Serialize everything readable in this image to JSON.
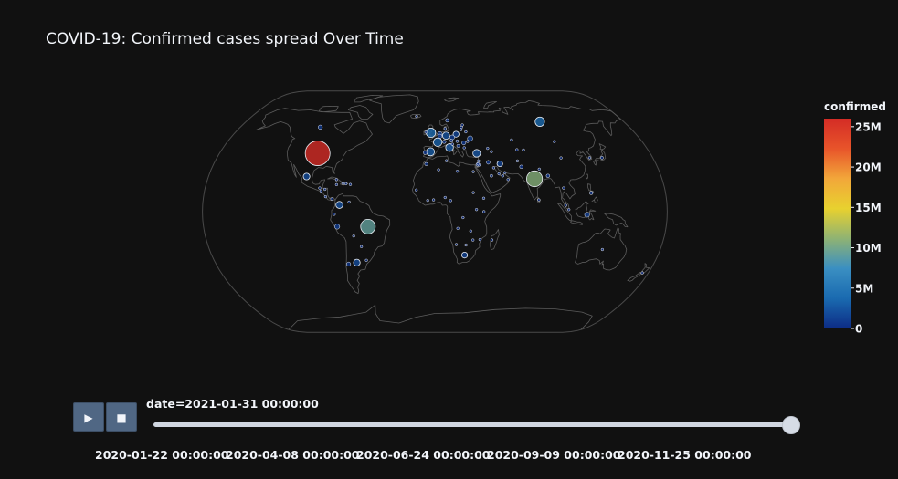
{
  "chart_data": {
    "type": "scatter",
    "subtype": "scatter-geo bubble map, natural earth projection",
    "title": "COVID-19: Confirmed cases spread Over Time",
    "color_variable": "confirmed",
    "colorbar": {
      "title": "confirmed",
      "range": [
        0,
        26000000
      ],
      "ticks": [
        "0",
        "5M",
        "10M",
        "15M",
        "20M",
        "25M"
      ],
      "tick_values": [
        0,
        5000000,
        10000000,
        15000000,
        20000000,
        25000000
      ],
      "colorscale": [
        "#0d2c85",
        "#1a6ab0",
        "#3a8fc2",
        "#8fb373",
        "#e8d12f",
        "#f2a73a",
        "#e8542a",
        "#d42c26"
      ]
    },
    "animation_frame": "date",
    "current_frame_label": "date=2021-01-31 00:00:00",
    "slider_ticks": [
      "2020-01-22 00:00:00",
      "2020-04-08 00:00:00",
      "2020-06-24 00:00:00",
      "2020-09-09 00:00:00",
      "2020-11-25 00:00:00"
    ],
    "points": [
      {
        "lon": -98,
        "lat": 39,
        "confirmed": 26200000
      },
      {
        "lon": 79,
        "lat": 22,
        "confirmed": 10750000
      },
      {
        "lon": -52,
        "lat": -10,
        "confirmed": 9200000
      },
      {
        "lon": 100,
        "lat": 61,
        "confirmed": 3800000
      },
      {
        "lon": -3.5,
        "lat": 53,
        "confirmed": 3800000
      },
      {
        "lon": 2.5,
        "lat": 46.5,
        "confirmed": 3200000
      },
      {
        "lon": -3.7,
        "lat": 40,
        "confirmed": 2800000
      },
      {
        "lon": 12.5,
        "lat": 42.8,
        "confirmed": 2550000
      },
      {
        "lon": 35,
        "lat": 39,
        "confirmed": 2480000
      },
      {
        "lon": 10,
        "lat": 51,
        "confirmed": 2200000
      },
      {
        "lon": -74,
        "lat": 4.5,
        "confirmed": 2100000
      },
      {
        "lon": -64,
        "lat": -34,
        "confirmed": 1900000
      },
      {
        "lon": -102,
        "lat": 23.5,
        "confirmed": 1850000
      },
      {
        "lon": 19,
        "lat": 52,
        "confirmed": 1500000
      },
      {
        "lon": 24,
        "lat": -29,
        "confirmed": 1450000
      },
      {
        "lon": 53,
        "lat": 32,
        "confirmed": 1400000
      },
      {
        "lon": 31,
        "lat": 49,
        "confirmed": 1200000
      },
      {
        "lon": -76,
        "lat": -10,
        "confirmed": 1100000
      },
      {
        "lon": 118,
        "lat": -2,
        "confirmed": 1080000
      },
      {
        "lon": 15.3,
        "lat": 49.8,
        "confirmed": 980000
      },
      {
        "lon": 4.5,
        "lat": 52.2,
        "confirmed": 960000
      },
      {
        "lon": -71,
        "lat": -35,
        "confirmed": 730000
      },
      {
        "lon": -106,
        "lat": 57,
        "confirmed": 780000
      },
      {
        "lon": 4.6,
        "lat": 50.6,
        "confirmed": 700000
      },
      {
        "lon": 25,
        "lat": 46,
        "confirmed": 720000
      },
      {
        "lon": 43.7,
        "lat": 33,
        "confirmed": 610000
      },
      {
        "lon": 122,
        "lat": 12.5,
        "confirmed": 530000
      },
      {
        "lon": 35,
        "lat": 31.5,
        "confirmed": 640000
      },
      {
        "lon": 45,
        "lat": 24,
        "confirmed": 370000
      },
      {
        "lon": 8.2,
        "lat": 46.8,
        "confirmed": 520000
      },
      {
        "lon": 70,
        "lat": 30,
        "confirmed": 545000
      },
      {
        "lon": 90,
        "lat": 24,
        "confirmed": 535000
      },
      {
        "lon": 14.5,
        "lat": 47.5,
        "confirmed": 410000
      },
      {
        "lon": -7,
        "lat": 31.8,
        "confirmed": 470000
      },
      {
        "lon": 19.5,
        "lat": 47.2,
        "confirmed": 370000
      },
      {
        "lon": 12,
        "lat": 62,
        "confirmed": 570000
      },
      {
        "lon": 20,
        "lat": 44,
        "confirmed": 400000
      },
      {
        "lon": -8,
        "lat": 39.5,
        "confirmed": 720000
      },
      {
        "lon": 67,
        "lat": 48,
        "confirmed": 240000
      },
      {
        "lon": -78,
        "lat": -1.8,
        "confirmed": 250000
      },
      {
        "lon": 101.5,
        "lat": 4.2,
        "confirmed": 210000
      },
      {
        "lon": 28,
        "lat": 53.7,
        "confirmed": 240000
      },
      {
        "lon": -80,
        "lat": 8.5,
        "confirmed": 320000
      },
      {
        "lon": 30.8,
        "lat": 26.8,
        "confirmed": 170000
      },
      {
        "lon": 9.5,
        "lat": 56,
        "confirmed": 200000
      },
      {
        "lon": 28.4,
        "lat": 47,
        "confirmed": 170000
      },
      {
        "lon": 25,
        "lat": 42.7,
        "confirmed": 215000
      },
      {
        "lon": -70,
        "lat": 18.7,
        "confirmed": 200000
      },
      {
        "lon": -90.2,
        "lat": 15.8,
        "confirmed": 155000
      },
      {
        "lon": 15.2,
        "lat": 45.1,
        "confirmed": 230000
      },
      {
        "lon": 47.5,
        "lat": 40.1,
        "confirmed": 230000
      },
      {
        "lon": 44.8,
        "lat": 42.3,
        "confirmed": 255000
      },
      {
        "lon": 35.9,
        "lat": 31.2,
        "confirmed": 320000
      },
      {
        "lon": 58,
        "lat": 21.5,
        "confirmed": 135000
      },
      {
        "lon": 35.9,
        "lat": 33.9,
        "confirmed": 290000
      },
      {
        "lon": 47.5,
        "lat": 29.3,
        "confirmed": 165000
      },
      {
        "lon": 54,
        "lat": 24,
        "confirmed": 310000
      },
      {
        "lon": 51.2,
        "lat": 25.3,
        "confirmed": 150000
      },
      {
        "lon": -8,
        "lat": 53.4,
        "confirmed": 195000
      },
      {
        "lon": 8,
        "lat": 9.5,
        "confirmed": 130000
      },
      {
        "lon": 38,
        "lat": 9,
        "confirmed": 135000
      },
      {
        "lon": 38,
        "lat": 0,
        "confirmed": 100000
      },
      {
        "lon": 3,
        "lat": 28,
        "confirmed": 107000
      },
      {
        "lon": 9.5,
        "lat": 34,
        "confirmed": 200000
      },
      {
        "lon": -85,
        "lat": 10,
        "confirmed": 190000
      },
      {
        "lon": -63.6,
        "lat": -16.3,
        "confirmed": 230000
      },
      {
        "lon": -58.4,
        "lat": -23.4,
        "confirmed": 130000
      },
      {
        "lon": -66.5,
        "lat": 18.2,
        "confirmed": 110000
      },
      {
        "lon": -86,
        "lat": 15,
        "confirmed": 140000
      },
      {
        "lon": -1,
        "lat": 7.9,
        "confirmed": 70000
      },
      {
        "lon": 12.3,
        "lat": 7.4,
        "confirmed": 30000
      },
      {
        "lon": 30,
        "lat": -19,
        "confirmed": 33000
      },
      {
        "lon": 28,
        "lat": -13,
        "confirmed": 60000
      },
      {
        "lon": 35.5,
        "lat": -18.7,
        "confirmed": 38000
      },
      {
        "lon": 45,
        "lat": -19,
        "confirmed": 19000
      },
      {
        "lon": 17,
        "lat": -22,
        "confirmed": 37000
      },
      {
        "lon": 24.7,
        "lat": -22.3,
        "confirmed": 23000
      },
      {
        "lon": 17.9,
        "lat": -11.2,
        "confirmed": 20000
      },
      {
        "lon": 21.8,
        "lat": -4,
        "confirmed": 22000
      },
      {
        "lon": 32.3,
        "lat": 1.4,
        "confirmed": 39000
      },
      {
        "lon": -14.5,
        "lat": 14.5,
        "confirmed": 26000
      },
      {
        "lon": -5.5,
        "lat": 7.5,
        "confirmed": 28000
      },
      {
        "lon": 30,
        "lat": 12.8,
        "confirmed": 27000
      },
      {
        "lon": 18,
        "lat": 27,
        "confirmed": 120000
      },
      {
        "lon": 100.9,
        "lat": 15.8,
        "confirmed": 19000
      },
      {
        "lon": 103.8,
        "lat": 1.35,
        "confirmed": 59000
      },
      {
        "lon": 104.2,
        "lat": 35.9,
        "confirmed": 100000
      },
      {
        "lon": 138,
        "lat": 36,
        "confirmed": 390000
      },
      {
        "lon": 127.8,
        "lat": 36,
        "confirmed": 78000
      },
      {
        "lon": 174.9,
        "lat": -40.9,
        "confirmed": 2300
      },
      {
        "lon": 133.8,
        "lat": -25.3,
        "confirmed": 28800
      },
      {
        "lon": 84.1,
        "lat": 28.4,
        "confirmed": 270000
      },
      {
        "lon": 80.8,
        "lat": 7.9,
        "confirmed": 60000
      },
      {
        "lon": 69.3,
        "lat": 41.4,
        "confirmed": 78000
      },
      {
        "lon": 74.8,
        "lat": 41.2,
        "confirmed": 84000
      },
      {
        "lon": 67.7,
        "lat": 33.9,
        "confirmed": 55000
      },
      {
        "lon": 103.8,
        "lat": 46.9,
        "confirmed": 1600
      },
      {
        "lon": -18,
        "lat": 65,
        "confirmed": 6000
      },
      {
        "lon": -77.8,
        "lat": 21.5,
        "confirmed": 24000
      },
      {
        "lon": -77.3,
        "lat": 18.1,
        "confirmed": 16000
      },
      {
        "lon": -72.3,
        "lat": 18.9,
        "confirmed": 11000
      },
      {
        "lon": -88.9,
        "lat": 13.8,
        "confirmed": 56000
      },
      {
        "lon": -66.6,
        "lat": 6.4,
        "confirmed": 125000
      },
      {
        "lon": -55.8,
        "lat": -32.5,
        "confirmed": 40000
      },
      {
        "lon": 56,
        "lat": 26.1,
        "confirmed": 105000
      },
      {
        "lon": 35.2,
        "lat": 31.9,
        "confirmed": 160000
      },
      {
        "lon": 25.7,
        "lat": 58.6,
        "confirmed": 42000
      },
      {
        "lon": 23.9,
        "lat": 55.2,
        "confirmed": 180000
      },
      {
        "lon": 24.6,
        "lat": 56.9,
        "confirmed": 65000
      }
    ]
  }
}
